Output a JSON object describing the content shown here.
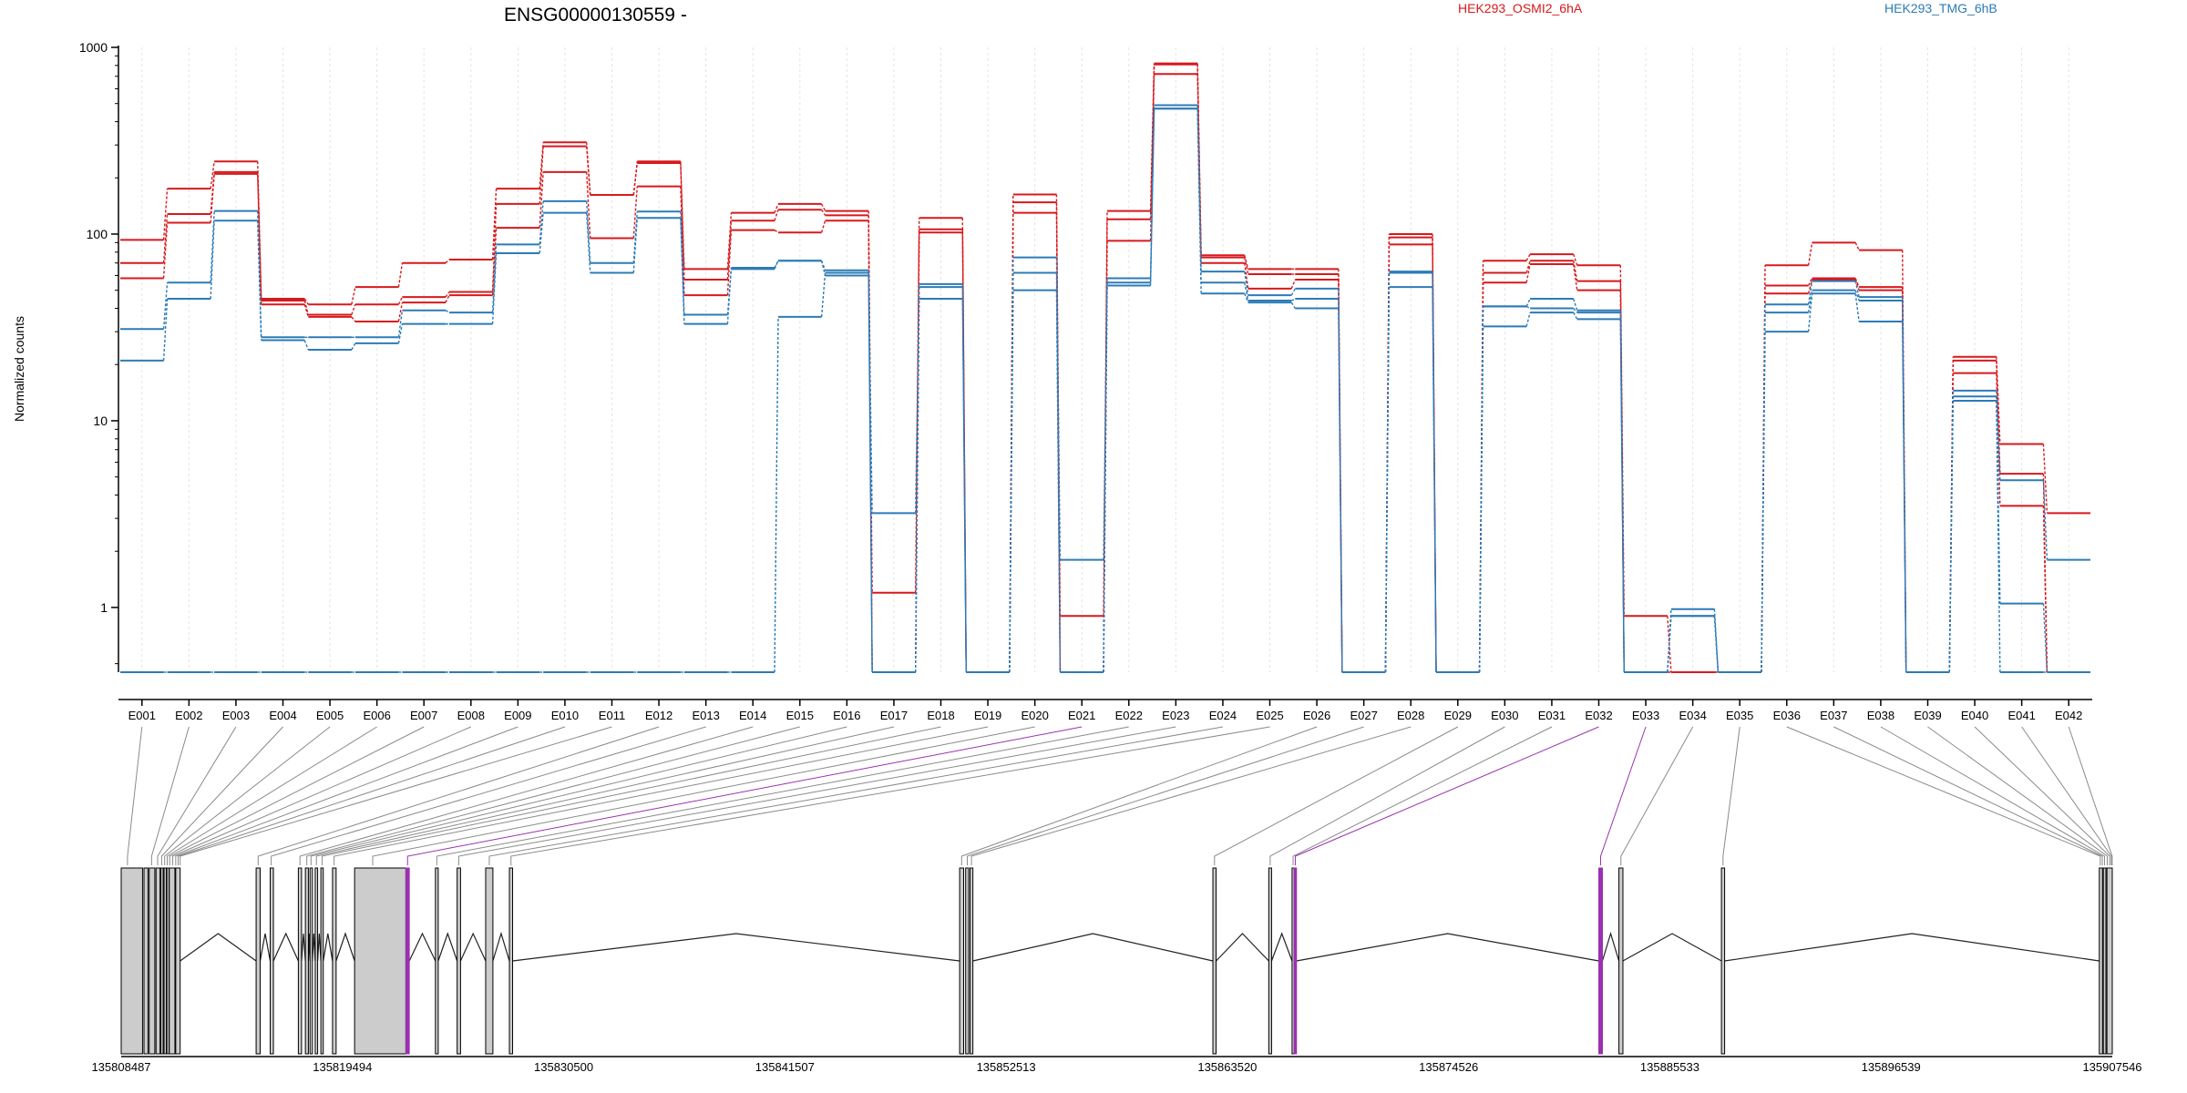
{
  "chart_data": {
    "type": "line",
    "title": "ENSG00000130559 -",
    "ylabel": "Normalized counts",
    "yscale": "log",
    "ylim": [
      0.45,
      1000
    ],
    "yticks": [
      1,
      10,
      100,
      1000
    ],
    "ytick_labels": [
      "1",
      "10",
      "100",
      "1000"
    ],
    "categories": [
      "E001",
      "E002",
      "E003",
      "E004",
      "E005",
      "E006",
      "E007",
      "E008",
      "E009",
      "E010",
      "E011",
      "E012",
      "E013",
      "E014",
      "E015",
      "E016",
      "E017",
      "E018",
      "E019",
      "E020",
      "E021",
      "E022",
      "E023",
      "E024",
      "E025",
      "E026",
      "E027",
      "E028",
      "E029",
      "E030",
      "E031",
      "E032",
      "E033",
      "E034",
      "E035",
      "E036",
      "E037",
      "E038",
      "E039",
      "E040",
      "E041",
      "E042"
    ],
    "legend": [
      {
        "label": "HEK293_OSMI2_6hA",
        "color": "#d7191c"
      },
      {
        "label": "HEK293_TMG_6hB",
        "color": "#2c7bb6"
      }
    ],
    "series": [
      {
        "group": "HEK293_OSMI2_6hA",
        "color": "#d7191c",
        "values": [
          93,
          175,
          245,
          45,
          42,
          52,
          70,
          73,
          175,
          310,
          162,
          245,
          65,
          130,
          145,
          133,
          1.2,
          122,
          0.45,
          163,
          0.9,
          133,
          820,
          77,
          65,
          65,
          0.45,
          100,
          0.45,
          72,
          78,
          68,
          0.9,
          0.45,
          0.45,
          68,
          90,
          82,
          0.45,
          22,
          7.5,
          3.2
        ]
      },
      {
        "group": "HEK293_OSMI2_6hA",
        "color": "#d7191c",
        "values": [
          70,
          128,
          215,
          44,
          37,
          42,
          46,
          49,
          145,
          295,
          162,
          240,
          57,
          118,
          135,
          126,
          0.45,
          106,
          0.45,
          148,
          0.45,
          120,
          810,
          75,
          61,
          61,
          0.45,
          96,
          0.45,
          62,
          72,
          56,
          0.45,
          0.45,
          0.45,
          53,
          58,
          52,
          0.45,
          21,
          5.2,
          0.45
        ]
      },
      {
        "group": "HEK293_OSMI2_6hA",
        "color": "#d7191c",
        "values": [
          58,
          115,
          210,
          42,
          36,
          34,
          43,
          47,
          108,
          215,
          95,
          180,
          47,
          105,
          102,
          118,
          0.45,
          102,
          0.45,
          130,
          0.45,
          92,
          720,
          70,
          51,
          57,
          0.45,
          88,
          0.45,
          55,
          69,
          50,
          0.45,
          0.45,
          0.45,
          48,
          57,
          50,
          0.45,
          18,
          3.5,
          0.45
        ]
      },
      {
        "group": "HEK293_TMG_6hB",
        "color": "#2c7bb6",
        "values": [
          31,
          55,
          133,
          28,
          28,
          28,
          39,
          38,
          88,
          150,
          70,
          132,
          37,
          65,
          72,
          64,
          3.2,
          54,
          0.45,
          75,
          1.8,
          58,
          490,
          63,
          47,
          51,
          0.45,
          63,
          0.45,
          41,
          45,
          39,
          0.45,
          0.98,
          0.45,
          42,
          56,
          46,
          0.45,
          14.5,
          4.8,
          1.8
        ]
      },
      {
        "group": "HEK293_TMG_6hB",
        "color": "#2c7bb6",
        "values": [
          0.45,
          0.45,
          0.45,
          0.45,
          0.45,
          0.45,
          0.45,
          0.45,
          0.45,
          0.45,
          0.45,
          0.45,
          0.45,
          0.45,
          36,
          62,
          0.45,
          52,
          0.45,
          62,
          0.45,
          55,
          470,
          55,
          44,
          45,
          0.45,
          62,
          0.45,
          41,
          40,
          38,
          0.45,
          0.9,
          0.45,
          38,
          50,
          44,
          0.45,
          13.5,
          1.05,
          0.45
        ]
      },
      {
        "group": "HEK293_TMG_6hB",
        "color": "#2c7bb6",
        "values": [
          21,
          45,
          118,
          27,
          24,
          26,
          33,
          33,
          79,
          130,
          62,
          122,
          33,
          66,
          72,
          60,
          0.45,
          45,
          0.45,
          50,
          0.45,
          53,
          470,
          48,
          43,
          40,
          0.45,
          52,
          0.45,
          32,
          38,
          35,
          0.45,
          0.9,
          0.45,
          30,
          48,
          34,
          0.45,
          12.8,
          0.45,
          0.45
        ]
      }
    ],
    "gene_model": {
      "coordinate_labels": [
        "135808487",
        "135819494",
        "135830500",
        "135841507",
        "135852513",
        "135863520",
        "135874526",
        "135885533",
        "135896539",
        "135907546"
      ],
      "coord_start": 135808487,
      "coord_end": 135907546,
      "highlight_color": "#9b30b0",
      "exons": [
        {
          "start": 135808487,
          "end": 135809550
        },
        {
          "start": 135809620,
          "end": 135809820
        },
        {
          "start": 135809880,
          "end": 135810160
        },
        {
          "start": 135810220,
          "end": 135810420
        },
        {
          "start": 135810460,
          "end": 135810560
        },
        {
          "start": 135810620,
          "end": 135810720
        },
        {
          "start": 135810760,
          "end": 135810840
        },
        {
          "start": 135810880,
          "end": 135811160
        },
        {
          "start": 135811200,
          "end": 135811420
        },
        {
          "start": 135815200,
          "end": 135815400
        },
        {
          "start": 135815900,
          "end": 135816060
        },
        {
          "start": 135817300,
          "end": 135817460
        },
        {
          "start": 135817650,
          "end": 135817800
        },
        {
          "start": 135817880,
          "end": 135818000
        },
        {
          "start": 135818140,
          "end": 135818260
        },
        {
          "start": 135818420,
          "end": 135818540
        },
        {
          "start": 135819000,
          "end": 135819180
        },
        {
          "start": 135820100,
          "end": 135822650
        },
        {
          "start": 135822650,
          "end": 135822820,
          "highlight": true
        },
        {
          "start": 135824120,
          "end": 135824260
        },
        {
          "start": 135825200,
          "end": 135825370
        },
        {
          "start": 135826620,
          "end": 135826980
        },
        {
          "start": 135827800,
          "end": 135827960
        },
        {
          "start": 135850200,
          "end": 135850400
        },
        {
          "start": 135850500,
          "end": 135850650
        },
        {
          "start": 135850720,
          "end": 135850860
        },
        {
          "start": 135862800,
          "end": 135862960
        },
        {
          "start": 135865580,
          "end": 135865720
        },
        {
          "start": 135866740,
          "end": 135866840
        },
        {
          "start": 135866840,
          "end": 135866960,
          "highlight": true
        },
        {
          "start": 135882000,
          "end": 135882180,
          "highlight": true
        },
        {
          "start": 135883000,
          "end": 135883200
        },
        {
          "start": 135888100,
          "end": 135888260
        },
        {
          "start": 135906900,
          "end": 135907060
        },
        {
          "start": 135907100,
          "end": 135907230
        },
        {
          "start": 135907280,
          "end": 135907546
        }
      ],
      "introns": [
        [
          135811420,
          135815200
        ],
        [
          135815400,
          135815900
        ],
        [
          135816060,
          135817300
        ],
        [
          135817460,
          135817650
        ],
        [
          135817800,
          135817880
        ],
        [
          135818000,
          135818140
        ],
        [
          135818260,
          135818420
        ],
        [
          135818540,
          135819000
        ],
        [
          135819180,
          135820100
        ],
        [
          135822820,
          135824120
        ],
        [
          135824260,
          135825200
        ],
        [
          135825370,
          135826620
        ],
        [
          135826980,
          135827800
        ],
        [
          135827960,
          135850200
        ],
        [
          135850860,
          135862800
        ],
        [
          135862960,
          135865580
        ],
        [
          135865720,
          135866740
        ],
        [
          135866960,
          135882000
        ],
        [
          135882180,
          135883000
        ],
        [
          135883200,
          135888100
        ],
        [
          135888260,
          135906900
        ]
      ],
      "exon_links": [
        135808800,
        135810000,
        135810300,
        135810500,
        135810650,
        135810780,
        135810900,
        135811050,
        135811200,
        135811320,
        135811420,
        135815300,
        135815950,
        135817380,
        135817720,
        135817930,
        135818200,
        135818480,
        135819080,
        135821000,
        135822735,
        135824190,
        135825280,
        135826800,
        135827880,
        135850300,
        135850580,
        135850790,
        135862880,
        135865650,
        135866790,
        135866900,
        135882090,
        135883100,
        135888180,
        135906950,
        135907050,
        135907160,
        135907300,
        135907420,
        135907500,
        135907540
      ],
      "highlighted_links": [
        20,
        31,
        32
      ]
    }
  }
}
